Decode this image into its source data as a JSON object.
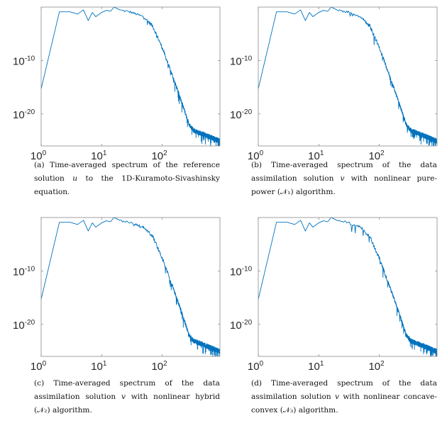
{
  "figure": {
    "panels": [
      {
        "id": "a",
        "label": "(a)",
        "caption_pre": "Time-averaged spectrum of the reference solution ",
        "caption_var": "u",
        "caption_post": " to the 1D-Kuramoto-Sivashinsky equation."
      },
      {
        "id": "b",
        "label": "(b)",
        "caption_pre": "Time-averaged spectrum of the data assimilation solution ",
        "caption_var": "v",
        "caption_post": " with nonlinear pure-power (𝒩₁) algorithm."
      },
      {
        "id": "c",
        "label": "(c)",
        "caption_pre": "Time-averaged spectrum of the data assimilation solution ",
        "caption_var": "v",
        "caption_post": " with nonlinear hybrid (𝒩₂) algorithm."
      },
      {
        "id": "d",
        "label": "(d)",
        "caption_pre": "Time-averaged spectrum of the data assimilation solution ",
        "caption_var": "v",
        "caption_post": " with nonlinear concave-convex (𝒩₃) algorithm."
      }
    ]
  },
  "chart_data": [
    {
      "panel": "a",
      "type": "line",
      "xscale": "log",
      "yscale": "log",
      "xlim": [
        1,
        900
      ],
      "ylim": [
        1e-26,
        1
      ],
      "grid": false,
      "box": true,
      "color": "#0072BD",
      "x_ticks": [
        {
          "base": "10",
          "exp": "0"
        },
        {
          "base": "10",
          "exp": "1"
        },
        {
          "base": "10",
          "exp": "2"
        }
      ],
      "y_ticks": [
        {
          "base": "10",
          "exp": "-10"
        },
        {
          "base": "10",
          "exp": "-20"
        }
      ],
      "points": [
        [
          1,
          5e-16
        ],
        [
          2,
          0.13
        ],
        [
          3,
          0.13
        ],
        [
          4,
          0.05
        ],
        [
          5,
          0.3
        ],
        [
          6,
          0.003
        ],
        [
          7,
          0.1
        ],
        [
          8,
          0.016
        ],
        [
          10,
          0.1
        ],
        [
          12,
          0.25
        ],
        [
          14,
          0.16
        ],
        [
          16,
          1
        ],
        [
          20,
          0.3
        ],
        [
          30,
          0.13
        ],
        [
          50,
          0.016
        ],
        [
          70,
          0.0003
        ],
        [
          100,
          3e-08
        ],
        [
          150,
          1e-13
        ],
        [
          200,
          1e-17
        ],
        [
          280,
          1e-22
        ],
        [
          330,
          1e-23
        ],
        [
          500,
          1.6e-24
        ],
        [
          900,
          1e-25
        ]
      ]
    },
    {
      "panel": "b",
      "type": "line",
      "xscale": "log",
      "yscale": "log",
      "xlim": [
        1,
        900
      ],
      "ylim": [
        1e-26,
        1
      ],
      "grid": false,
      "box": true,
      "color": "#0072BD",
      "x_ticks": [
        {
          "base": "10",
          "exp": "0"
        },
        {
          "base": "10",
          "exp": "1"
        },
        {
          "base": "10",
          "exp": "2"
        }
      ],
      "y_ticks": [
        {
          "base": "10",
          "exp": "-10"
        },
        {
          "base": "10",
          "exp": "-20"
        }
      ],
      "points": [
        [
          1,
          5e-16
        ],
        [
          2,
          0.13
        ],
        [
          3,
          0.13
        ],
        [
          4,
          0.05
        ],
        [
          5,
          0.3
        ],
        [
          6,
          0.003
        ],
        [
          7,
          0.1
        ],
        [
          8,
          0.016
        ],
        [
          10,
          0.1
        ],
        [
          12,
          0.25
        ],
        [
          14,
          0.16
        ],
        [
          16,
          1
        ],
        [
          20,
          0.3
        ],
        [
          30,
          0.13
        ],
        [
          50,
          0.016
        ],
        [
          70,
          0.0003
        ],
        [
          100,
          3e-08
        ],
        [
          150,
          1e-13
        ],
        [
          200,
          1e-17
        ],
        [
          280,
          1e-22
        ],
        [
          330,
          1e-23
        ],
        [
          500,
          1.6e-24
        ],
        [
          900,
          1e-25
        ]
      ]
    },
    {
      "panel": "c",
      "type": "line",
      "xscale": "log",
      "yscale": "log",
      "xlim": [
        1,
        900
      ],
      "ylim": [
        1e-26,
        1
      ],
      "grid": false,
      "box": true,
      "color": "#0072BD",
      "x_ticks": [
        {
          "base": "10",
          "exp": "0"
        },
        {
          "base": "10",
          "exp": "1"
        },
        {
          "base": "10",
          "exp": "2"
        }
      ],
      "y_ticks": [
        {
          "base": "10",
          "exp": "-10"
        },
        {
          "base": "10",
          "exp": "-20"
        }
      ],
      "points": [
        [
          1,
          5e-16
        ],
        [
          2,
          0.13
        ],
        [
          3,
          0.13
        ],
        [
          4,
          0.05
        ],
        [
          5,
          0.3
        ],
        [
          6,
          0.003
        ],
        [
          7,
          0.1
        ],
        [
          8,
          0.016
        ],
        [
          10,
          0.1
        ],
        [
          12,
          0.25
        ],
        [
          14,
          0.16
        ],
        [
          16,
          1
        ],
        [
          20,
          0.3
        ],
        [
          30,
          0.13
        ],
        [
          50,
          0.016
        ],
        [
          70,
          0.0003
        ],
        [
          100,
          3e-08
        ],
        [
          150,
          1e-13
        ],
        [
          200,
          1e-17
        ],
        [
          280,
          1e-22
        ],
        [
          330,
          1e-23
        ],
        [
          500,
          1.6e-24
        ],
        [
          900,
          1e-25
        ]
      ]
    },
    {
      "panel": "d",
      "type": "line",
      "xscale": "log",
      "yscale": "log",
      "xlim": [
        1,
        900
      ],
      "ylim": [
        1e-26,
        1
      ],
      "grid": false,
      "box": true,
      "color": "#0072BD",
      "x_ticks": [
        {
          "base": "10",
          "exp": "0"
        },
        {
          "base": "10",
          "exp": "1"
        },
        {
          "base": "10",
          "exp": "2"
        }
      ],
      "y_ticks": [
        {
          "base": "10",
          "exp": "-10"
        },
        {
          "base": "10",
          "exp": "-20"
        }
      ],
      "points": [
        [
          1,
          5e-16
        ],
        [
          2,
          0.13
        ],
        [
          3,
          0.13
        ],
        [
          4,
          0.05
        ],
        [
          5,
          0.3
        ],
        [
          6,
          0.003
        ],
        [
          7,
          0.1
        ],
        [
          8,
          0.016
        ],
        [
          10,
          0.1
        ],
        [
          12,
          0.25
        ],
        [
          14,
          0.16
        ],
        [
          16,
          1
        ],
        [
          20,
          0.3
        ],
        [
          30,
          0.13
        ],
        [
          50,
          0.016
        ],
        [
          70,
          0.0003
        ],
        [
          100,
          3e-08
        ],
        [
          150,
          1e-13
        ],
        [
          200,
          1e-17
        ],
        [
          280,
          1e-22
        ],
        [
          330,
          1e-23
        ],
        [
          500,
          1.6e-24
        ],
        [
          900,
          1e-25
        ]
      ]
    }
  ]
}
